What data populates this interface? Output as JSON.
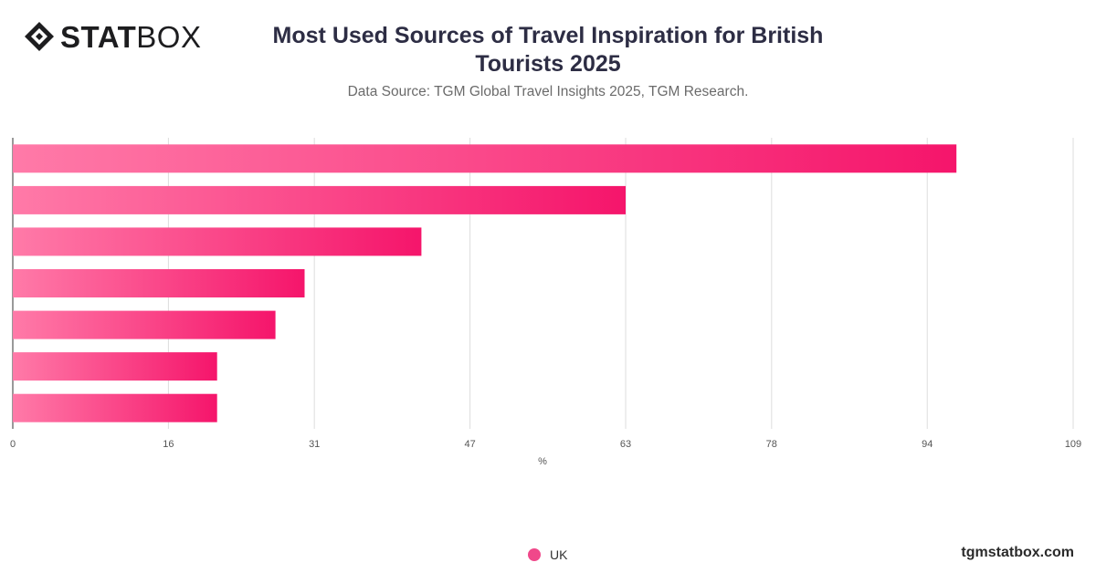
{
  "brand": {
    "logo_bold": "STAT",
    "logo_light": "BOX",
    "watermark": "tgmstatbox.com"
  },
  "header": {
    "title": "Most Used Sources of Travel Inspiration for British Tourists 2025",
    "subtitle": "Data Source: TGM Global Travel Insights 2025, TGM Research."
  },
  "colors": {
    "bar_start": "#ff7aa8",
    "bar_end": "#f5156b",
    "grid": "#dddddd",
    "axis": "#333333"
  },
  "chart_data": {
    "type": "bar",
    "orientation": "horizontal",
    "title": "Most Used Sources of Travel Inspiration for British Tourists 2025",
    "xlabel": "%",
    "xlim": [
      0,
      109
    ],
    "xticks": [
      "0",
      "16",
      "31",
      "47",
      "63",
      "78",
      "94",
      "109"
    ],
    "grid": true,
    "legend_position": "bottom-center",
    "series": [
      {
        "name": "UK",
        "values": [
          97,
          63,
          42,
          30,
          27,
          21,
          21
        ]
      }
    ]
  }
}
